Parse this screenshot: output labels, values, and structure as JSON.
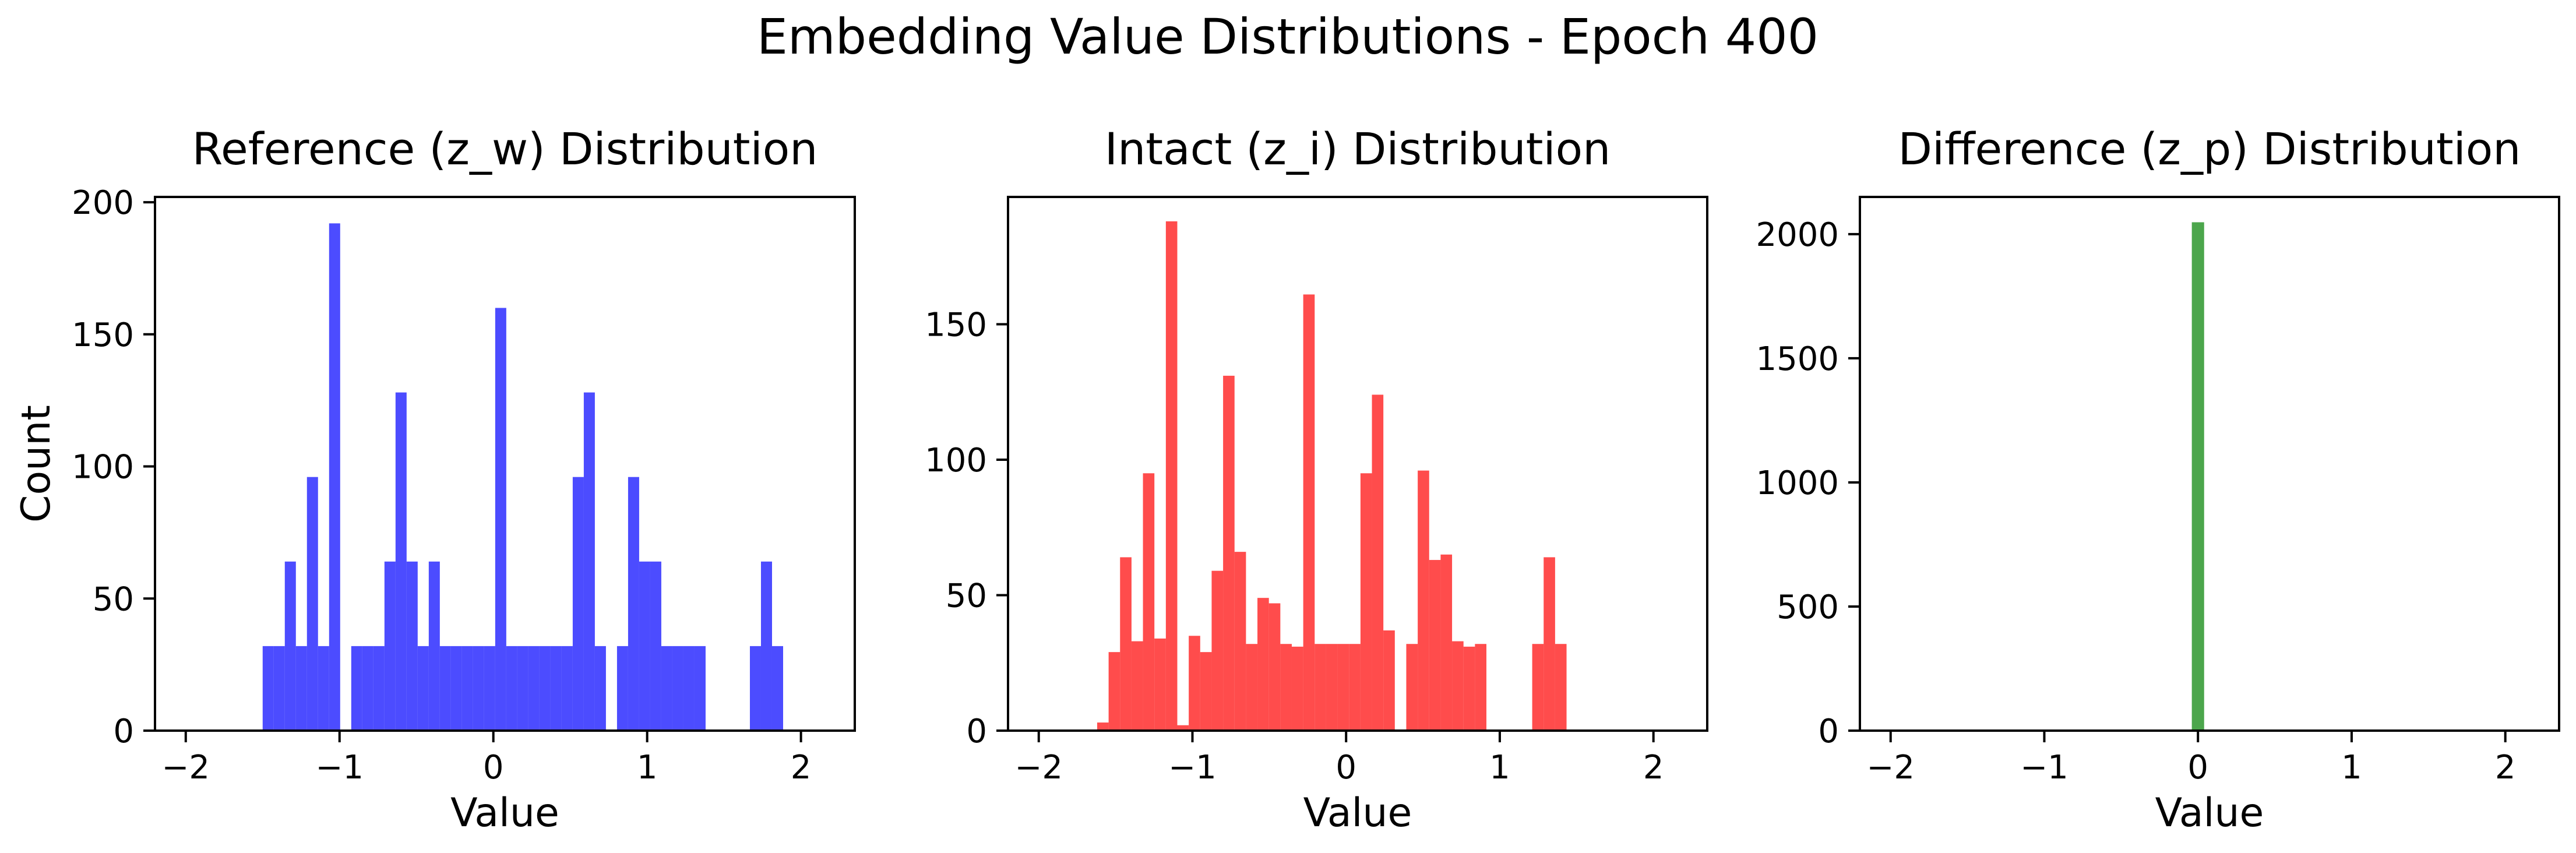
{
  "figure": {
    "title": "Embedding Value Distributions - Epoch 400"
  },
  "chart_data": [
    {
      "type": "histogram",
      "title": "Reference (z_w) Distribution",
      "xlabel": "Value",
      "ylabel": "Count",
      "color": "#0000ff",
      "opacity": 0.7,
      "xlim": [
        -2.2,
        2.35
      ],
      "ylim": [
        0,
        202
      ],
      "xticks": [
        -2,
        -1,
        0,
        1,
        2
      ],
      "yticks": [
        0,
        50,
        100,
        150,
        200
      ],
      "bin_start": -1.5,
      "bin_width": 0.072,
      "counts": [
        32,
        32,
        64,
        32,
        96,
        32,
        192,
        0,
        32,
        32,
        32,
        64,
        128,
        64,
        32,
        64,
        32,
        32,
        32,
        32,
        32,
        160,
        32,
        32,
        32,
        32,
        32,
        32,
        96,
        128,
        32,
        0,
        32,
        96,
        64,
        64,
        32,
        32,
        32,
        32,
        0,
        0,
        0,
        0,
        32,
        64,
        32
      ]
    },
    {
      "type": "histogram",
      "title": "Intact (z_i) Distribution",
      "xlabel": "Value",
      "ylabel": "",
      "color": "#ff0000",
      "opacity": 0.7,
      "xlim": [
        -2.2,
        2.35
      ],
      "ylim": [
        0,
        197
      ],
      "xticks": [
        -2,
        -1,
        0,
        1,
        2
      ],
      "yticks": [
        0,
        50,
        100,
        150
      ],
      "bin_start": -1.62,
      "bin_width": 0.0745,
      "counts": [
        3,
        29,
        64,
        33,
        95,
        34,
        188,
        2,
        35,
        29,
        59,
        131,
        66,
        32,
        49,
        47,
        32,
        31,
        161,
        32,
        32,
        32,
        32,
        95,
        124,
        37,
        0,
        32,
        96,
        63,
        65,
        33,
        31,
        32,
        0,
        0,
        0,
        0,
        32,
        64,
        32
      ]
    },
    {
      "type": "histogram",
      "title": "Difference (z_p) Distribution",
      "xlabel": "Value",
      "ylabel": "",
      "color": "#008000",
      "opacity": 0.7,
      "xlim": [
        -2.2,
        2.35
      ],
      "ylim": [
        0,
        2150
      ],
      "xticks": [
        -2,
        -1,
        0,
        1,
        2
      ],
      "yticks": [
        0,
        500,
        1000,
        1500,
        2000
      ],
      "bin_start": -0.04,
      "bin_width": 0.08,
      "counts": [
        2048
      ]
    }
  ]
}
